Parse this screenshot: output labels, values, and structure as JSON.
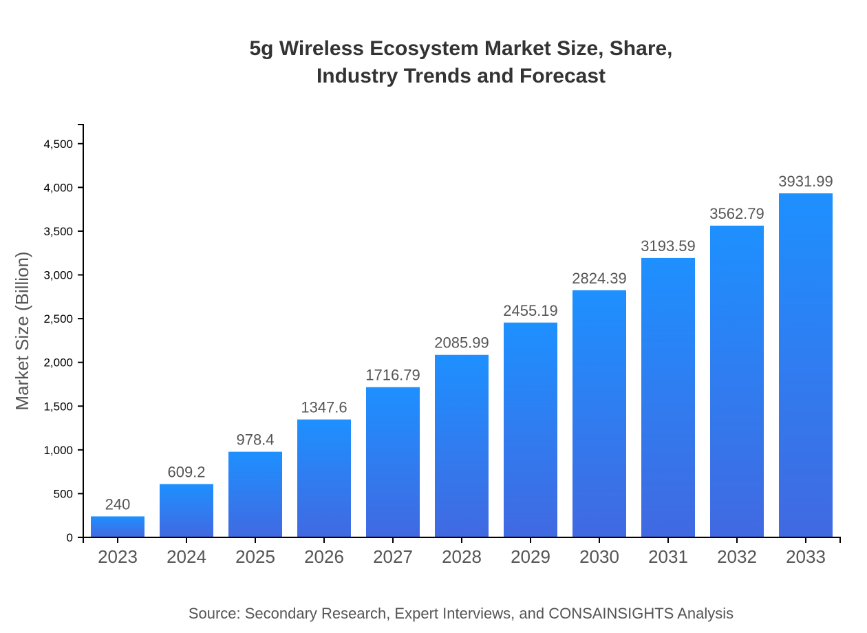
{
  "chart_data": {
    "type": "bar",
    "title": [
      "5g Wireless Ecosystem Market Size, Share,",
      "Industry Trends and Forecast"
    ],
    "xlabel": "",
    "ylabel": "Market Size (Billion)",
    "categories": [
      "2023",
      "2024",
      "2025",
      "2026",
      "2027",
      "2028",
      "2029",
      "2030",
      "2031",
      "2032",
      "2033"
    ],
    "values": [
      240,
      609.2,
      978.4,
      1347.6,
      1716.79,
      2085.99,
      2455.19,
      2824.39,
      3193.59,
      3562.79,
      3931.99
    ],
    "data_labels": [
      "240",
      "609.2",
      "978.4",
      "1347.6",
      "1716.79",
      "2085.99",
      "2455.19",
      "2824.39",
      "3193.59",
      "3562.79",
      "3931.99"
    ],
    "ylim": [
      0,
      4718.39
    ],
    "yticks": [
      0,
      500,
      1000,
      1500,
      2000,
      2500,
      3000,
      3500,
      4000,
      4500
    ],
    "ytick_labels": [
      "0",
      "500",
      "1,000",
      "1,500",
      "2,000",
      "2,500",
      "3,000",
      "3,500",
      "4,000",
      "4,500"
    ],
    "grid": false,
    "colors": {
      "bar_top": "#1e90ff",
      "bar_bottom": "#4169e1"
    },
    "source": "Source: Secondary Research, Expert Interviews, and CONSAINSIGHTS Analysis"
  }
}
